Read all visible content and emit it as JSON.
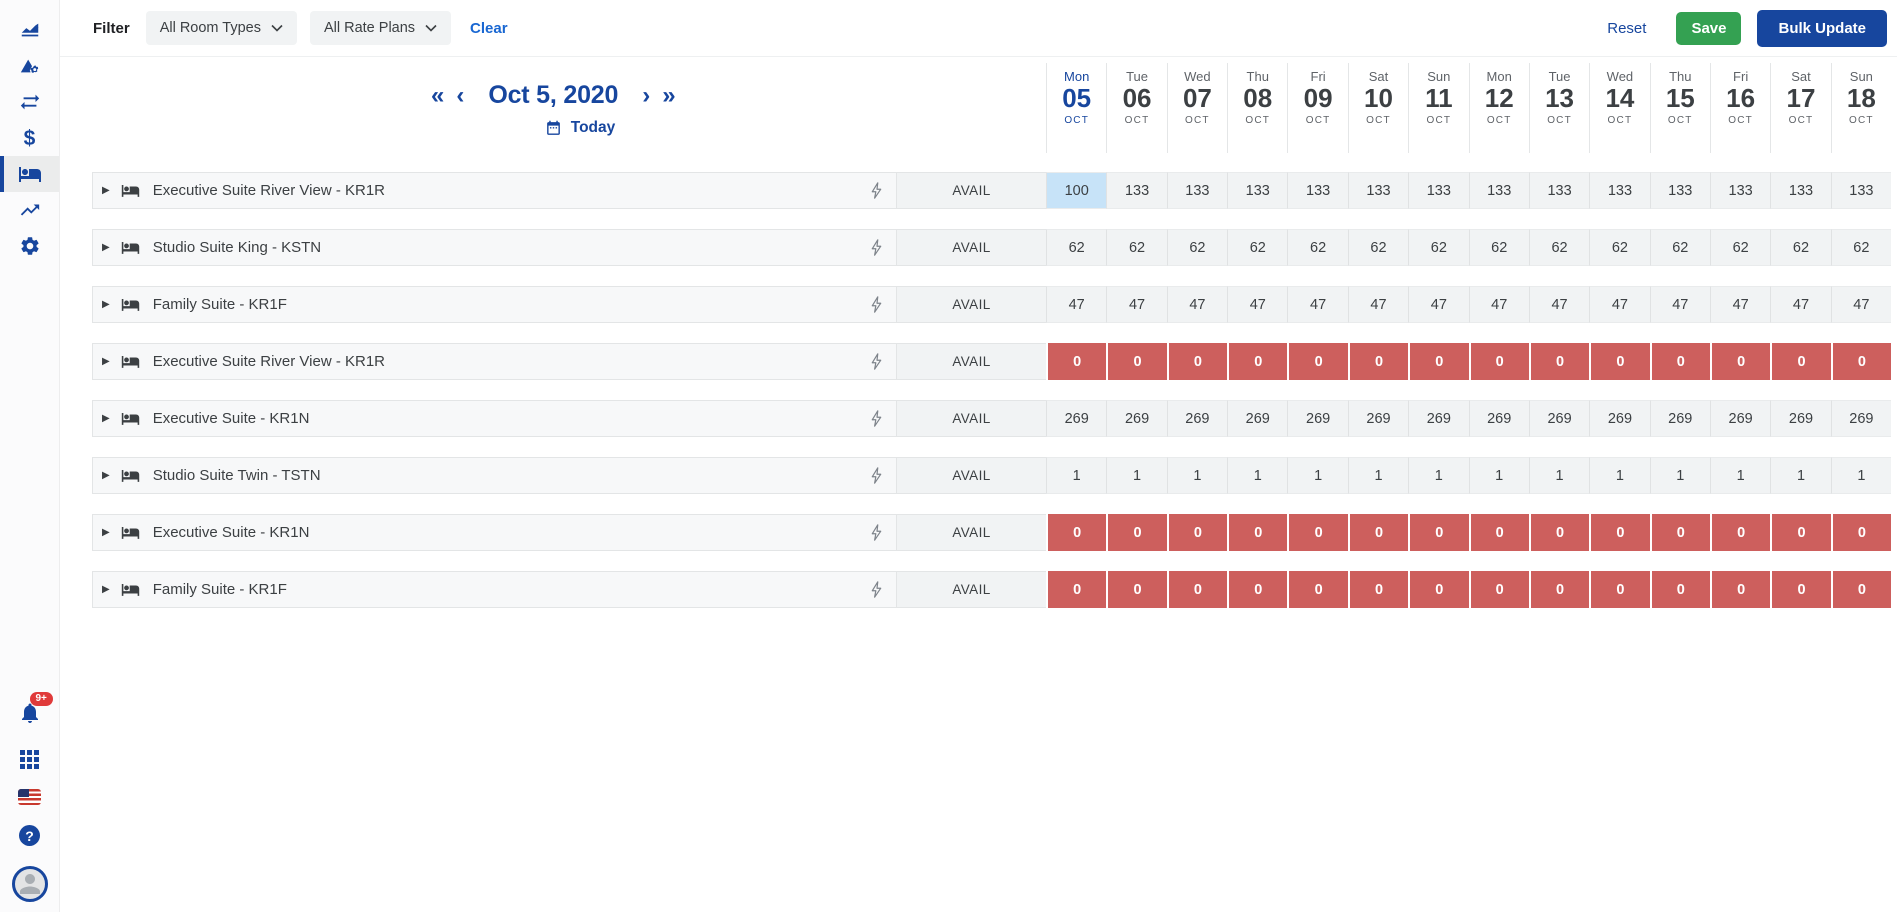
{
  "colors": {
    "primary_navy": "#17469E",
    "link_blue": "#1967D2",
    "save_green": "#34A152",
    "zero_red": "#CD5F5D",
    "highlight_blue": "#C7E3F8",
    "cell_gray": "#F1F3F4"
  },
  "sidebar": {
    "icons_top": [
      "area-chart-icon",
      "rates-mountain-gear-icon",
      "transfer-arrows-icon",
      "dollar-icon",
      "rooms-bed-icon",
      "trending-up-icon",
      "settings-gear-icon"
    ],
    "active_icon": "rooms-bed-icon",
    "icons_bottom": [
      "notifications-bell-icon",
      "apps-grid-icon",
      "us-flag-icon",
      "help-icon",
      "user-avatar"
    ],
    "notification_badge": "9+"
  },
  "filter_bar": {
    "label": "Filter",
    "room_types_dropdown": "All Room Types",
    "rate_plans_dropdown": "All Rate Plans",
    "clear": "Clear",
    "reset": "Reset",
    "save": "Save",
    "bulk_update": "Bulk Update"
  },
  "date_nav": {
    "date_label": "Oct 5, 2020",
    "today_label": "Today"
  },
  "calendar": {
    "days": [
      {
        "dow": "Mon",
        "num": "05",
        "mon": "OCT",
        "active": true
      },
      {
        "dow": "Tue",
        "num": "06",
        "mon": "OCT",
        "active": false
      },
      {
        "dow": "Wed",
        "num": "07",
        "mon": "OCT",
        "active": false
      },
      {
        "dow": "Thu",
        "num": "08",
        "mon": "OCT",
        "active": false
      },
      {
        "dow": "Fri",
        "num": "09",
        "mon": "OCT",
        "active": false
      },
      {
        "dow": "Sat",
        "num": "10",
        "mon": "OCT",
        "active": false
      },
      {
        "dow": "Sun",
        "num": "11",
        "mon": "OCT",
        "active": false
      },
      {
        "dow": "Mon",
        "num": "12",
        "mon": "OCT",
        "active": false
      },
      {
        "dow": "Tue",
        "num": "13",
        "mon": "OCT",
        "active": false
      },
      {
        "dow": "Wed",
        "num": "14",
        "mon": "OCT",
        "active": false
      },
      {
        "dow": "Thu",
        "num": "15",
        "mon": "OCT",
        "active": false
      },
      {
        "dow": "Fri",
        "num": "16",
        "mon": "OCT",
        "active": false
      },
      {
        "dow": "Sat",
        "num": "17",
        "mon": "OCT",
        "active": false
      },
      {
        "dow": "Sun",
        "num": "18",
        "mon": "OCT",
        "active": false
      }
    ]
  },
  "grid": {
    "avail_label": "AVAIL",
    "rows": [
      {
        "name": "Executive Suite River View - KR1R",
        "zero_state": false,
        "highlight_index": 0,
        "values": [
          "100",
          "133",
          "133",
          "133",
          "133",
          "133",
          "133",
          "133",
          "133",
          "133",
          "133",
          "133",
          "133",
          "133"
        ]
      },
      {
        "name": "Studio Suite King - KSTN",
        "zero_state": false,
        "highlight_index": null,
        "values": [
          "62",
          "62",
          "62",
          "62",
          "62",
          "62",
          "62",
          "62",
          "62",
          "62",
          "62",
          "62",
          "62",
          "62"
        ]
      },
      {
        "name": "Family Suite - KR1F",
        "zero_state": false,
        "highlight_index": null,
        "values": [
          "47",
          "47",
          "47",
          "47",
          "47",
          "47",
          "47",
          "47",
          "47",
          "47",
          "47",
          "47",
          "47",
          "47"
        ]
      },
      {
        "name": "Executive Suite River View - KR1R",
        "zero_state": true,
        "highlight_index": null,
        "values": [
          "0",
          "0",
          "0",
          "0",
          "0",
          "0",
          "0",
          "0",
          "0",
          "0",
          "0",
          "0",
          "0",
          "0"
        ]
      },
      {
        "name": "Executive Suite - KR1N",
        "zero_state": false,
        "highlight_index": null,
        "values": [
          "269",
          "269",
          "269",
          "269",
          "269",
          "269",
          "269",
          "269",
          "269",
          "269",
          "269",
          "269",
          "269",
          "269"
        ]
      },
      {
        "name": "Studio Suite Twin - TSTN",
        "zero_state": false,
        "highlight_index": null,
        "values": [
          "1",
          "1",
          "1",
          "1",
          "1",
          "1",
          "1",
          "1",
          "1",
          "1",
          "1",
          "1",
          "1",
          "1"
        ]
      },
      {
        "name": "Executive Suite - KR1N",
        "zero_state": true,
        "highlight_index": null,
        "values": [
          "0",
          "0",
          "0",
          "0",
          "0",
          "0",
          "0",
          "0",
          "0",
          "0",
          "0",
          "0",
          "0",
          "0"
        ]
      },
      {
        "name": "Family Suite - KR1F",
        "zero_state": true,
        "highlight_index": null,
        "values": [
          "0",
          "0",
          "0",
          "0",
          "0",
          "0",
          "0",
          "0",
          "0",
          "0",
          "0",
          "0",
          "0",
          "0"
        ]
      }
    ]
  }
}
